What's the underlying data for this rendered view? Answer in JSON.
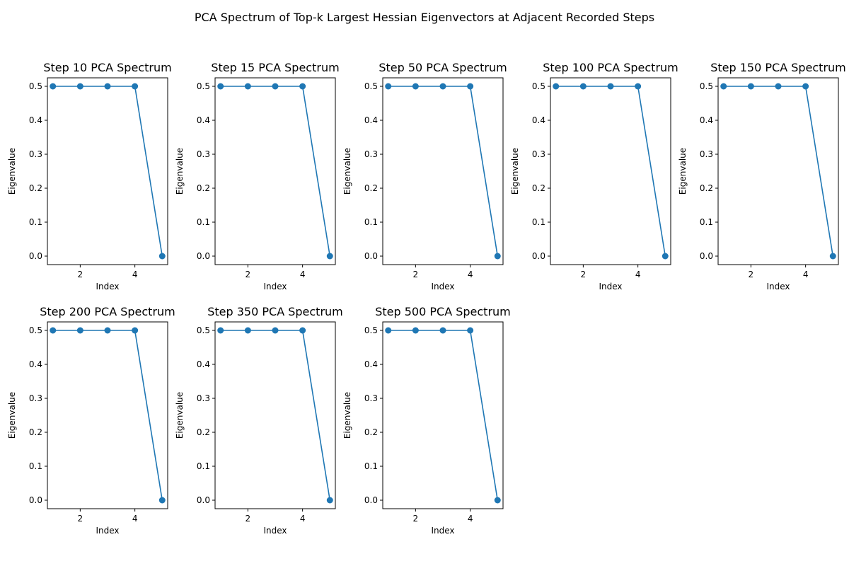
{
  "figure": {
    "suptitle": "PCA Spectrum of Top-k Largest Hessian Eigenvectors at Adjacent Recorded Steps"
  },
  "chart_data": [
    {
      "type": "line",
      "title": "Step 10 PCA Spectrum",
      "xlabel": "Index",
      "ylabel": "Eigenvalue",
      "x": [
        1,
        2,
        3,
        4,
        5
      ],
      "y": [
        0.5,
        0.5,
        0.5,
        0.5,
        0.0
      ],
      "xlim": [
        0.8,
        5.2
      ],
      "ylim": [
        -0.025,
        0.525
      ],
      "xticks": [
        2,
        4
      ],
      "yticks": [
        0.0,
        0.1,
        0.2,
        0.3,
        0.4,
        0.5
      ],
      "grid": false,
      "color": "#1f77b4",
      "marker": "circle"
    },
    {
      "type": "line",
      "title": "Step 15 PCA Spectrum",
      "xlabel": "Index",
      "ylabel": "Eigenvalue",
      "x": [
        1,
        2,
        3,
        4,
        5
      ],
      "y": [
        0.5,
        0.5,
        0.5,
        0.5,
        0.0
      ],
      "xlim": [
        0.8,
        5.2
      ],
      "ylim": [
        -0.025,
        0.525
      ],
      "xticks": [
        2,
        4
      ],
      "yticks": [
        0.0,
        0.1,
        0.2,
        0.3,
        0.4,
        0.5
      ],
      "grid": false,
      "color": "#1f77b4",
      "marker": "circle"
    },
    {
      "type": "line",
      "title": "Step 50 PCA Spectrum",
      "xlabel": "Index",
      "ylabel": "Eigenvalue",
      "x": [
        1,
        2,
        3,
        4,
        5
      ],
      "y": [
        0.5,
        0.5,
        0.5,
        0.5,
        0.0
      ],
      "xlim": [
        0.8,
        5.2
      ],
      "ylim": [
        -0.025,
        0.525
      ],
      "xticks": [
        2,
        4
      ],
      "yticks": [
        0.0,
        0.1,
        0.2,
        0.3,
        0.4,
        0.5
      ],
      "grid": false,
      "color": "#1f77b4",
      "marker": "circle"
    },
    {
      "type": "line",
      "title": "Step 100 PCA Spectrum",
      "xlabel": "Index",
      "ylabel": "Eigenvalue",
      "x": [
        1,
        2,
        3,
        4,
        5
      ],
      "y": [
        0.5,
        0.5,
        0.5,
        0.5,
        0.0
      ],
      "xlim": [
        0.8,
        5.2
      ],
      "ylim": [
        -0.025,
        0.525
      ],
      "xticks": [
        2,
        4
      ],
      "yticks": [
        0.0,
        0.1,
        0.2,
        0.3,
        0.4,
        0.5
      ],
      "grid": false,
      "color": "#1f77b4",
      "marker": "circle"
    },
    {
      "type": "line",
      "title": "Step 150 PCA Spectrum",
      "xlabel": "Index",
      "ylabel": "Eigenvalue",
      "x": [
        1,
        2,
        3,
        4,
        5
      ],
      "y": [
        0.5,
        0.5,
        0.5,
        0.5,
        0.0
      ],
      "xlim": [
        0.8,
        5.2
      ],
      "ylim": [
        -0.025,
        0.525
      ],
      "xticks": [
        2,
        4
      ],
      "yticks": [
        0.0,
        0.1,
        0.2,
        0.3,
        0.4,
        0.5
      ],
      "grid": false,
      "color": "#1f77b4",
      "marker": "circle"
    },
    {
      "type": "line",
      "title": "Step 200 PCA Spectrum",
      "xlabel": "Index",
      "ylabel": "Eigenvalue",
      "x": [
        1,
        2,
        3,
        4,
        5
      ],
      "y": [
        0.5,
        0.5,
        0.5,
        0.5,
        0.0
      ],
      "xlim": [
        0.8,
        5.2
      ],
      "ylim": [
        -0.025,
        0.525
      ],
      "xticks": [
        2,
        4
      ],
      "yticks": [
        0.0,
        0.1,
        0.2,
        0.3,
        0.4,
        0.5
      ],
      "grid": false,
      "color": "#1f77b4",
      "marker": "circle"
    },
    {
      "type": "line",
      "title": "Step 350 PCA Spectrum",
      "xlabel": "Index",
      "ylabel": "Eigenvalue",
      "x": [
        1,
        2,
        3,
        4,
        5
      ],
      "y": [
        0.5,
        0.5,
        0.5,
        0.5,
        0.0
      ],
      "xlim": [
        0.8,
        5.2
      ],
      "ylim": [
        -0.025,
        0.525
      ],
      "xticks": [
        2,
        4
      ],
      "yticks": [
        0.0,
        0.1,
        0.2,
        0.3,
        0.4,
        0.5
      ],
      "grid": false,
      "color": "#1f77b4",
      "marker": "circle"
    },
    {
      "type": "line",
      "title": "Step 500 PCA Spectrum",
      "xlabel": "Index",
      "ylabel": "Eigenvalue",
      "x": [
        1,
        2,
        3,
        4,
        5
      ],
      "y": [
        0.5,
        0.5,
        0.5,
        0.5,
        0.0
      ],
      "xlim": [
        0.8,
        5.2
      ],
      "ylim": [
        -0.025,
        0.525
      ],
      "xticks": [
        2,
        4
      ],
      "yticks": [
        0.0,
        0.1,
        0.2,
        0.3,
        0.4,
        0.5
      ],
      "grid": false,
      "color": "#1f77b4",
      "marker": "circle"
    }
  ]
}
